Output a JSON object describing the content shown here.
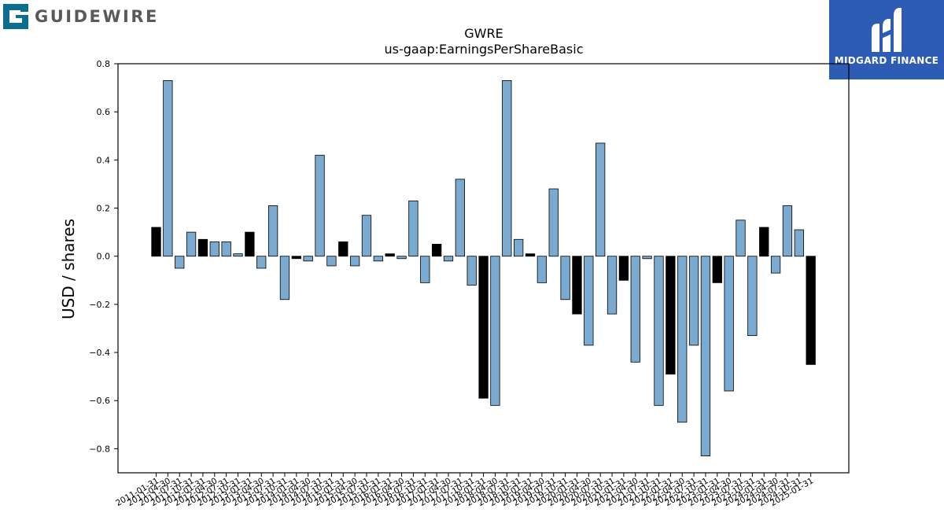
{
  "header": {
    "company_logo_text": "GUIDEWIRE",
    "partner_logo_text": "MIDGARD FINANCE",
    "partner_color": "#2d5cb4"
  },
  "chart_data": {
    "type": "bar",
    "title": "GWRE",
    "subtitle": "us-gaap:EarningsPerShareBasic",
    "xlabel": "",
    "ylabel": "USD / shares",
    "ylim": [
      -0.9,
      0.8
    ],
    "yticks": [
      -0.8,
      -0.6,
      -0.4,
      -0.2,
      0.0,
      0.2,
      0.4,
      0.6,
      0.8
    ],
    "ytick_labels": [
      "−0.8",
      "−0.6",
      "−0.4",
      "−0.2",
      "0.0",
      "0.2",
      "0.4",
      "0.6",
      "0.8"
    ],
    "grid": false,
    "colors": {
      "quarter": "#7aaad0",
      "annual": "#000000",
      "edge": "#000000"
    },
    "categories": [
      "2011-01-31",
      "2011-04-30",
      "2011-07-31",
      "2011-10-31",
      "2012-01-31",
      "2012-04-30",
      "2012-07-31",
      "2012-10-31",
      "2013-01-31",
      "2013-04-30",
      "2013-07-31",
      "2013-10-31",
      "2014-01-31",
      "2014-04-30",
      "2014-07-31",
      "2014-10-31",
      "2015-01-31",
      "2015-04-30",
      "2015-07-31",
      "2015-10-31",
      "2016-01-31",
      "2016-04-30",
      "2016-07-31",
      "2016-10-31",
      "2017-01-31",
      "2017-04-30",
      "2017-07-31",
      "2017-10-31",
      "2018-01-31",
      "2018-04-30",
      "2018-07-31",
      "2018-10-31",
      "2019-01-31",
      "2019-04-30",
      "2019-07-31",
      "2019-10-31",
      "2020-01-31",
      "2020-04-30",
      "2020-07-31",
      "2020-10-31",
      "2021-01-31",
      "2021-04-30",
      "2021-07-31",
      "2021-10-31",
      "2022-01-31",
      "2022-04-30",
      "2022-07-31",
      "2022-10-31",
      "2023-01-31",
      "2023-04-30",
      "2023-07-31",
      "2023-10-31",
      "2024-01-31",
      "2024-04-30",
      "2024-07-31",
      "2024-10-31",
      "2025-01-31"
    ],
    "values": [
      0.12,
      0.73,
      -0.05,
      0.1,
      0.07,
      0.06,
      0.06,
      0.01,
      0.1,
      -0.05,
      0.21,
      -0.18,
      -0.01,
      -0.02,
      0.42,
      -0.04,
      0.06,
      -0.04,
      0.17,
      -0.02,
      0.01,
      -0.01,
      0.23,
      -0.11,
      0.05,
      -0.02,
      0.32,
      -0.12,
      -0.59,
      -0.62,
      0.73,
      0.07,
      0.01,
      -0.11,
      0.28,
      -0.18,
      -0.24,
      -0.37,
      0.47,
      -0.24,
      -0.1,
      -0.44,
      -0.01,
      -0.62,
      -0.49,
      -0.69,
      -0.37,
      -0.83,
      -0.11,
      -0.56,
      0.15,
      -0.33,
      0.12,
      -0.07,
      0.21,
      0.11,
      -0.45
    ],
    "bar_kind": [
      "annual",
      "quarter",
      "quarter",
      "quarter",
      "annual",
      "quarter",
      "quarter",
      "quarter",
      "annual",
      "quarter",
      "quarter",
      "quarter",
      "annual",
      "quarter",
      "quarter",
      "quarter",
      "annual",
      "quarter",
      "quarter",
      "quarter",
      "annual",
      "quarter",
      "quarter",
      "quarter",
      "annual",
      "quarter",
      "quarter",
      "quarter",
      "annual",
      "quarter",
      "quarter",
      "quarter",
      "annual",
      "quarter",
      "quarter",
      "quarter",
      "annual",
      "quarter",
      "quarter",
      "quarter",
      "annual",
      "quarter",
      "quarter",
      "quarter",
      "annual",
      "quarter",
      "quarter",
      "quarter",
      "annual",
      "quarter",
      "quarter",
      "quarter",
      "annual",
      "quarter",
      "quarter",
      "quarter",
      "annual"
    ]
  }
}
